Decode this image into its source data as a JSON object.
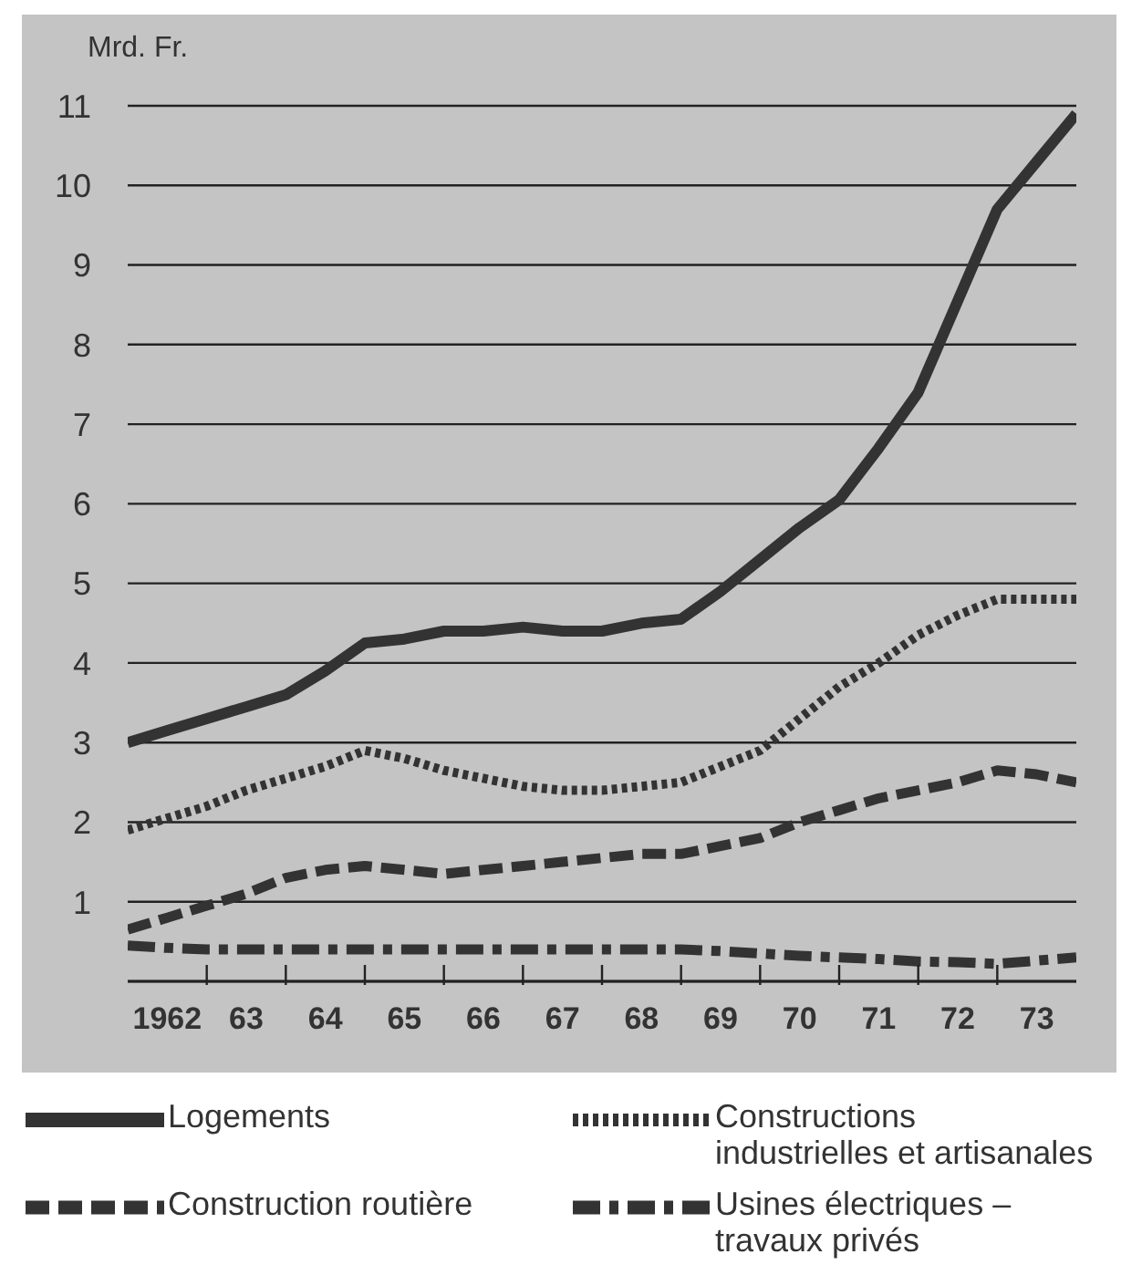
{
  "chart_data": {
    "type": "line",
    "ylabel": "Mrd. Fr.",
    "categories": [
      null,
      "1962",
      null,
      "63",
      null,
      "64",
      null,
      "65",
      null,
      "66",
      null,
      "67",
      null,
      "68",
      null,
      "69",
      null,
      "70",
      null,
      "71",
      null,
      "72",
      null,
      "73",
      null
    ],
    "series": [
      {
        "name": "Logements",
        "color": "#333333",
        "line_style": "solid",
        "values": [
          3.0,
          3.15,
          3.3,
          3.45,
          3.6,
          3.9,
          4.25,
          4.3,
          4.4,
          4.4,
          4.45,
          4.4,
          4.4,
          4.5,
          4.55,
          4.9,
          5.3,
          5.7,
          6.05,
          6.7,
          7.4,
          8.55,
          9.7,
          10.3,
          10.9
        ]
      },
      {
        "name": "Constructions industrielles et artisanales",
        "color": "#333333",
        "line_style": "dotted",
        "values": [
          1.9,
          2.05,
          2.2,
          2.4,
          2.55,
          2.7,
          2.9,
          2.8,
          2.65,
          2.55,
          2.45,
          2.4,
          2.4,
          2.45,
          2.5,
          2.7,
          2.9,
          3.3,
          3.7,
          4.0,
          4.35,
          4.6,
          4.8,
          4.8,
          4.8
        ]
      },
      {
        "name": "Construction routière",
        "color": "#333333",
        "line_style": "dashed",
        "values": [
          0.65,
          0.8,
          0.95,
          1.1,
          1.3,
          1.4,
          1.45,
          1.4,
          1.35,
          1.4,
          1.45,
          1.5,
          1.55,
          1.6,
          1.6,
          1.7,
          1.8,
          2.0,
          2.15,
          2.3,
          2.4,
          2.5,
          2.65,
          2.6,
          2.5
        ]
      },
      {
        "name": "Usines électriques – travaux privés",
        "color": "#333333",
        "line_style": "dashdot",
        "values": [
          0.45,
          0.42,
          0.4,
          0.4,
          0.4,
          0.4,
          0.4,
          0.4,
          0.4,
          0.4,
          0.4,
          0.4,
          0.4,
          0.4,
          0.4,
          0.38,
          0.35,
          0.32,
          0.3,
          0.28,
          0.25,
          0.24,
          0.22,
          0.26,
          0.3
        ]
      }
    ],
    "ylim": [
      0,
      11
    ],
    "yticks": [
      1,
      2,
      3,
      4,
      5,
      6,
      7,
      8,
      9,
      10,
      11
    ],
    "grid": "y",
    "legend": "bottom",
    "marker": "none"
  }
}
